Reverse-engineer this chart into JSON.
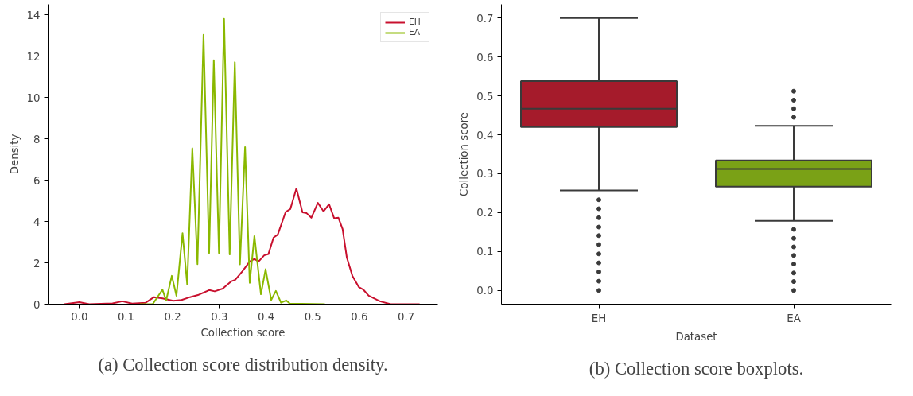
{
  "chart_data": [
    {
      "type": "line",
      "xlabel": "Collection score",
      "ylabel": "Density",
      "xlim": [
        -0.067,
        0.768
      ],
      "ylim": [
        0,
        14.5
      ],
      "xticks": [
        {
          "value": 0,
          "label": "0.0"
        },
        0.1,
        0.2,
        0.3,
        0.4,
        0.5,
        0.6,
        0.7
      ],
      "yticks": [
        0,
        2,
        4,
        6,
        8,
        10,
        12,
        14
      ],
      "legend": "top right",
      "grid": false,
      "marker": "none",
      "line_style": "solid",
      "annotations": [
        "(a) Collection score distribution density."
      ],
      "series": [
        {
          "name": "EH",
          "color": "#c8102e",
          "x": [
            -0.032,
            0.0,
            0.021,
            0.071,
            0.092,
            0.113,
            0.142,
            0.16,
            0.178,
            0.201,
            0.219,
            0.237,
            0.254,
            0.278,
            0.29,
            0.307,
            0.325,
            0.334,
            0.349,
            0.365,
            0.375,
            0.384,
            0.396,
            0.405,
            0.416,
            0.425,
            0.442,
            0.452,
            0.465,
            0.478,
            0.487,
            0.497,
            0.511,
            0.523,
            0.535,
            0.546,
            0.555,
            0.564,
            0.573,
            0.585,
            0.599,
            0.608,
            0.62,
            0.644,
            0.667,
            0.729
          ],
          "values": [
            0,
            0.1,
            0,
            0.04,
            0.14,
            0.03,
            0.07,
            0.34,
            0.28,
            0.16,
            0.2,
            0.34,
            0.44,
            0.68,
            0.62,
            0.75,
            1.1,
            1.18,
            1.58,
            2.06,
            2.19,
            2.06,
            2.36,
            2.42,
            3.22,
            3.36,
            4.46,
            4.6,
            5.6,
            4.44,
            4.4,
            4.18,
            4.9,
            4.49,
            4.83,
            4.15,
            4.18,
            3.63,
            2.26,
            1.37,
            0.82,
            0.71,
            0.41,
            0.14,
            0,
            0
          ]
        },
        {
          "name": "EA",
          "color": "#8ab800",
          "x": [
            0.13,
            0.157,
            0.178,
            0.186,
            0.198,
            0.208,
            0.221,
            0.231,
            0.242,
            0.253,
            0.266,
            0.278,
            0.288,
            0.299,
            0.31,
            0.322,
            0.333,
            0.344,
            0.355,
            0.365,
            0.375,
            0.389,
            0.399,
            0.411,
            0.421,
            0.432,
            0.443,
            0.451,
            0.526
          ],
          "values": [
            0,
            0,
            0.7,
            0.18,
            1.37,
            0.4,
            3.43,
            0.96,
            7.54,
            1.93,
            13.03,
            2.47,
            11.8,
            2.47,
            13.8,
            2.4,
            11.7,
            1.92,
            7.6,
            1.03,
            3.3,
            0.48,
            1.69,
            0.2,
            0.64,
            0.07,
            0.18,
            0.03,
            0
          ]
        }
      ]
    },
    {
      "type": "box",
      "xlabel": "Dataset",
      "ylabel": "Collection score",
      "categories": [
        "EH",
        "EA"
      ],
      "colors": [
        "#a51b2b",
        "#7aa116"
      ],
      "ylim": [
        -0.035,
        0.735
      ],
      "yticks": [
        {
          "value": 0,
          "label": "0.0"
        },
        0.1,
        0.2,
        0.3,
        0.4,
        0.5,
        0.6,
        0.7
      ],
      "grid": false,
      "annotations": [
        "(b) Collection score boxplots."
      ],
      "boxes": [
        {
          "low": 0.257,
          "q1": 0.42,
          "median": 0.467,
          "q3": 0.538,
          "high": 0.7,
          "outliers": [
            0.233,
            0.21,
            0.187,
            0.163,
            0.141,
            0.118,
            0.094,
            0.071,
            0.048,
            0.024,
            0.0
          ]
        },
        {
          "low": 0.179,
          "q1": 0.267,
          "median": 0.312,
          "q3": 0.334,
          "high": 0.423,
          "outliers": [
            0.512,
            0.489,
            0.467,
            0.445,
            0.157,
            0.134,
            0.112,
            0.09,
            0.068,
            0.045,
            0.023,
            0.0
          ]
        }
      ]
    }
  ]
}
